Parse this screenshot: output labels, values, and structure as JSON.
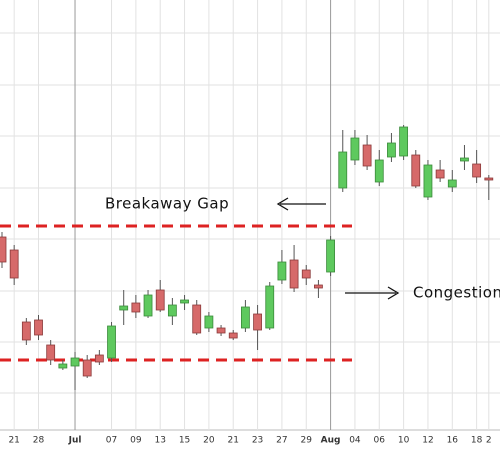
{
  "chart_data": {
    "type": "candlestick",
    "categories": [
      null,
      "21",
      null,
      "28",
      null,
      null,
      "Jul",
      null,
      null,
      "07",
      null,
      "09",
      null,
      "13",
      null,
      "15",
      null,
      "20",
      null,
      "21",
      null,
      "23",
      null,
      "27",
      null,
      "29",
      null,
      "Aug",
      null,
      "04",
      null,
      "06",
      null,
      "10",
      null,
      "12",
      null,
      "16",
      null,
      "18",
      "2"
    ],
    "open": [
      213,
      200,
      128,
      130,
      105,
      82,
      84,
      90,
      95,
      92,
      140,
      147,
      134,
      160,
      134,
      147,
      145,
      122,
      122,
      117,
      122,
      136,
      122,
      170,
      190,
      180,
      165,
      178,
      262,
      290,
      305,
      268,
      293,
      294,
      295,
      253,
      280,
      263,
      289,
      286,
      272
    ],
    "high": [
      218,
      205,
      132,
      135,
      110,
      90,
      98,
      95,
      100,
      128,
      160,
      155,
      160,
      170,
      152,
      155,
      150,
      138,
      125,
      120,
      150,
      145,
      168,
      200,
      205,
      185,
      170,
      214,
      320,
      320,
      315,
      300,
      317,
      325,
      300,
      290,
      290,
      280,
      305,
      300,
      275
    ],
    "low": [
      182,
      165,
      105,
      110,
      85,
      80,
      60,
      72,
      85,
      88,
      125,
      132,
      132,
      138,
      125,
      140,
      115,
      118,
      114,
      110,
      118,
      100,
      120,
      166,
      158,
      165,
      152,
      174,
      258,
      285,
      280,
      264,
      288,
      290,
      262,
      250,
      268,
      258,
      280,
      267,
      250
    ],
    "close": [
      188,
      172,
      110,
      115,
      90,
      86,
      92,
      74,
      88,
      124,
      144,
      138,
      155,
      140,
      145,
      150,
      117,
      134,
      117,
      112,
      143,
      120,
      164,
      188,
      162,
      172,
      162,
      210,
      298,
      312,
      284,
      290,
      307,
      323,
      264,
      285,
      272,
      270,
      292,
      273,
      270
    ],
    "up_color": "#5ec95e",
    "down_color": "#d66a6a",
    "ylim": [
      20,
      450
    ],
    "levels": [
      224,
      90
    ],
    "level_color": "#dd2222",
    "grid": true,
    "annotations": [
      "Breakaway Gap",
      "Congestion"
    ]
  }
}
